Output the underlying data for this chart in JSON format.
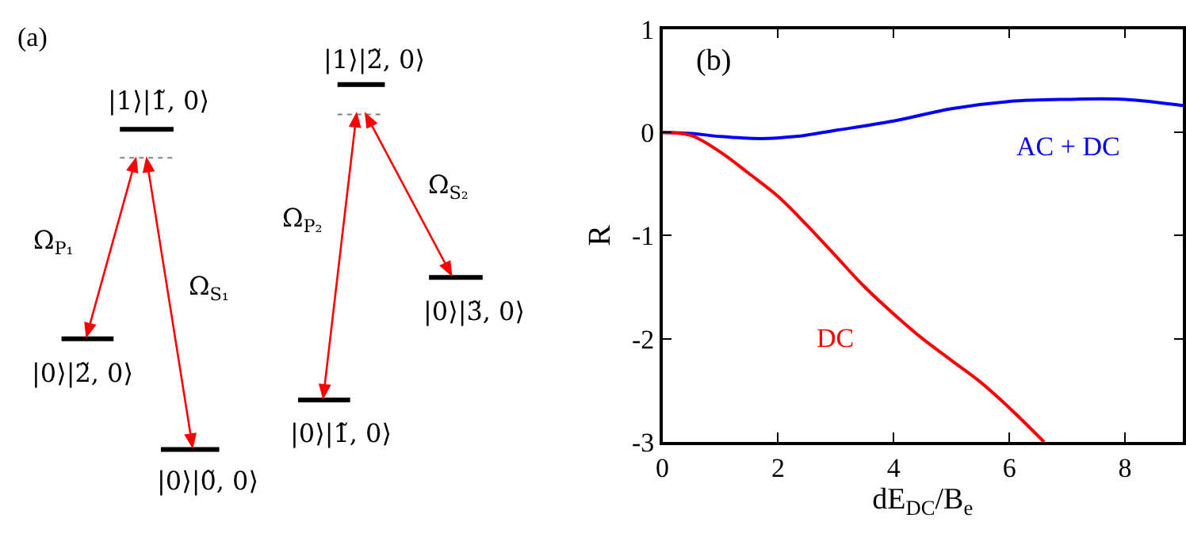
{
  "chart_data": [
    {
      "type": "other",
      "title": "(a)",
      "annotations": [
        "|1⟩|1̃, 0⟩",
        "|1⟩|2̃, 0⟩",
        "|0⟩|2̃, 0⟩",
        "|0⟩|0̃, 0⟩",
        "|0⟩|1̃, 0⟩",
        "|0⟩|3̃, 0⟩",
        "Ω$_{P₁}$",
        "Ω$_{S₁}$",
        "Ω$_{P₂}$",
        "Ω$_{S₂}$"
      ]
    },
    {
      "type": "line",
      "title": "(b)",
      "xlabel": "dE$_{DC}$/B$_{e}$",
      "ylabel": "R",
      "xlim": [
        0,
        9
      ],
      "ylim": [
        -3,
        1
      ],
      "xticks": [
        0,
        2,
        4,
        6,
        8
      ],
      "yticks": [
        -3,
        -2,
        -1,
        0,
        1
      ],
      "grid": false,
      "legend": false,
      "marker": "none",
      "line_style": "solid",
      "series": [
        {
          "name": "AC + DC",
          "color": "#0000ff",
          "x": [
            0,
            0.5,
            1,
            1.7,
            2.3,
            3,
            4,
            5,
            6,
            7,
            8,
            9
          ],
          "values": [
            0,
            -0.01,
            -0.04,
            -0.06,
            -0.04,
            0.02,
            0.11,
            0.23,
            0.3,
            0.32,
            0.32,
            0.26
          ]
        },
        {
          "name": "DC",
          "color": "#ff0000",
          "x": [
            0,
            0.5,
            1,
            1.5,
            2,
            2.5,
            3,
            3.5,
            4,
            4.5,
            5,
            5.5,
            6,
            6.6
          ],
          "values": [
            0,
            -0.03,
            -0.19,
            -0.4,
            -0.62,
            -0.9,
            -1.2,
            -1.5,
            -1.76,
            -2.0,
            -2.21,
            -2.42,
            -2.67,
            -3.0
          ]
        }
      ]
    }
  ]
}
